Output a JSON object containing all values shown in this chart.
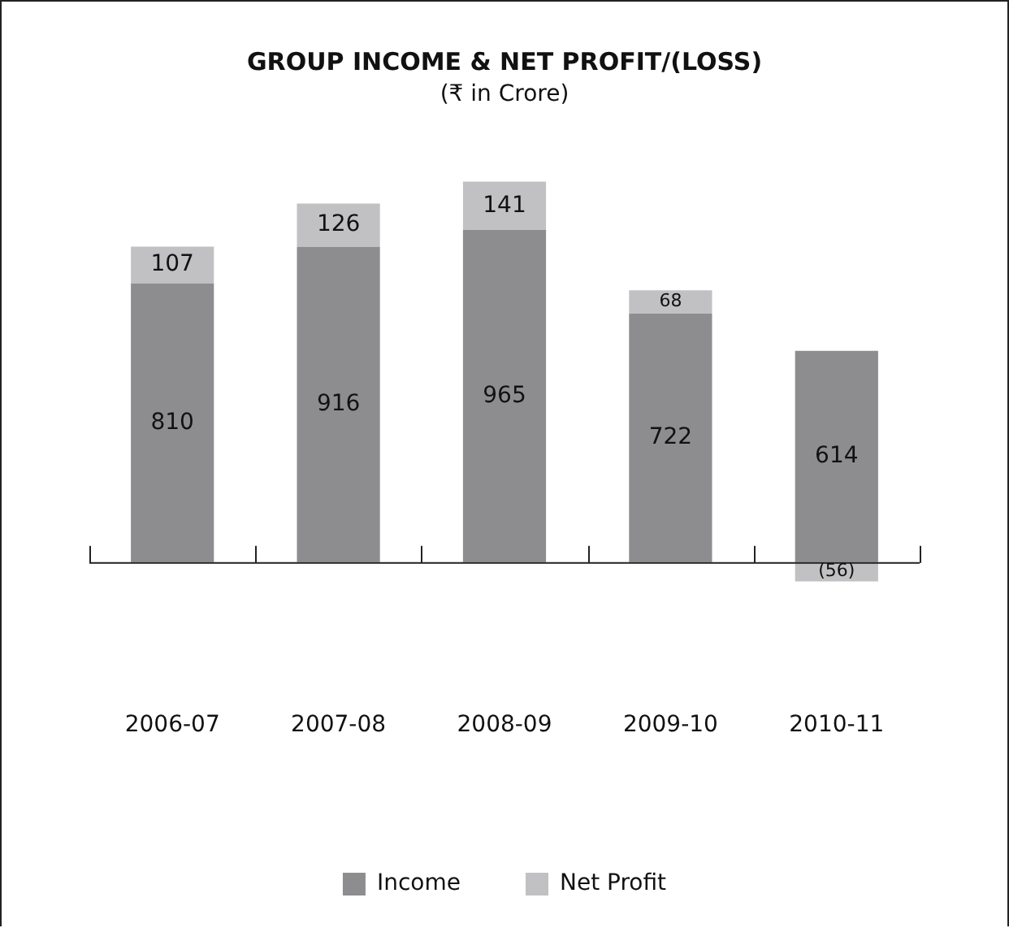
{
  "chart_data": {
    "type": "bar",
    "title": "GROUP INCOME & NET PROFIT/(LOSS)",
    "subtitle": "(₹ in Crore)",
    "categories": [
      "2006-07",
      "2007-08",
      "2008-09",
      "2009-10",
      "2010-11"
    ],
    "stacked": true,
    "series": [
      {
        "name": "Income",
        "color": "#8d8d8f",
        "values": [
          810,
          916,
          965,
          722,
          614
        ],
        "value_labels": [
          "810",
          "916",
          "965",
          "722",
          "614"
        ]
      },
      {
        "name": "Net Profit",
        "color": "#c1c1c3",
        "values": [
          107,
          126,
          141,
          68,
          -56
        ],
        "value_labels": [
          "107",
          "126",
          "141",
          "68",
          "(56)"
        ]
      }
    ],
    "legend": "bottom",
    "grid": false
  }
}
